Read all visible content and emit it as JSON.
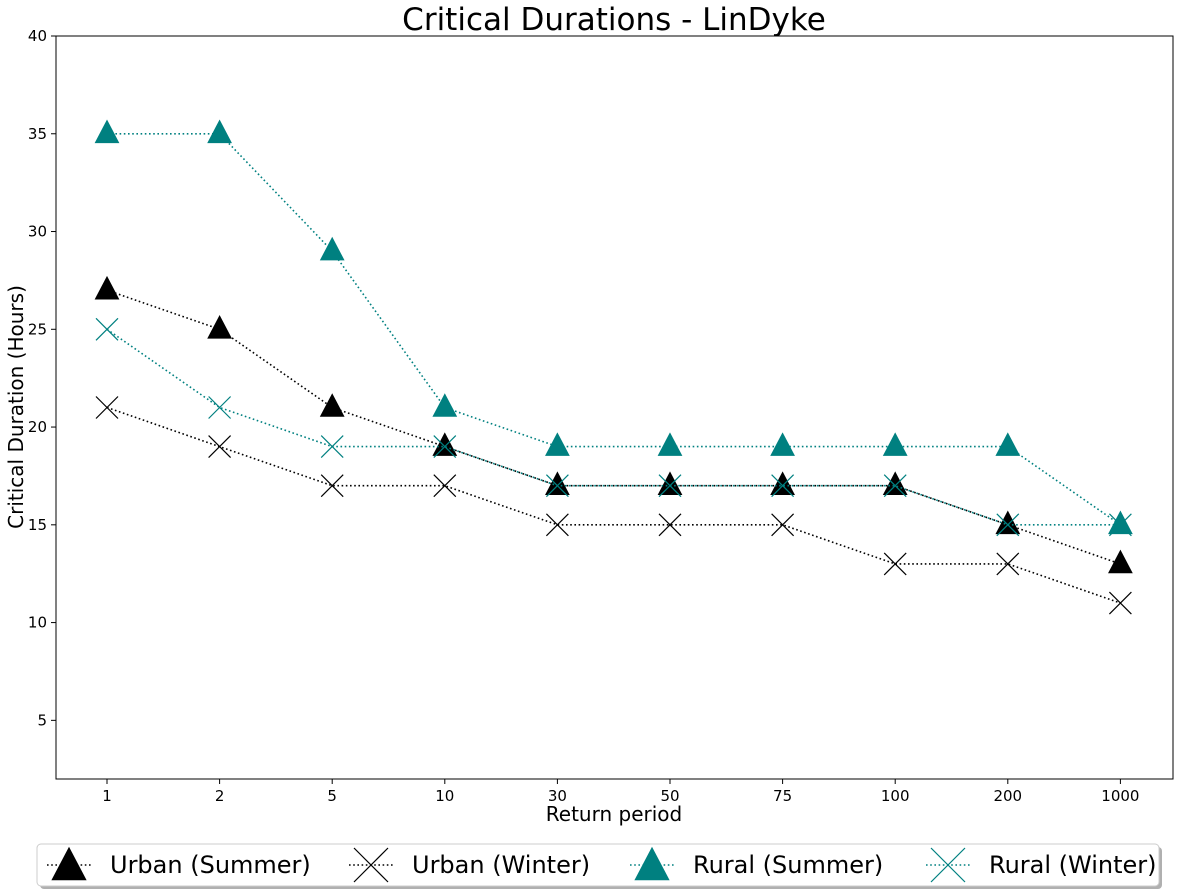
{
  "chart_data": {
    "type": "line",
    "title": "Critical Durations - LinDyke",
    "xlabel": "Return period",
    "ylabel": "Critical Duration (Hours)",
    "categories": [
      "1",
      "2",
      "5",
      "10",
      "30",
      "50",
      "75",
      "100",
      "200",
      "1000"
    ],
    "ylim": [
      2,
      40
    ],
    "yticks": [
      5,
      10,
      15,
      20,
      25,
      30,
      35,
      40
    ],
    "grid": false,
    "legend_position": "bottom",
    "series": [
      {
        "name": "Urban (Summer)",
        "marker": "triangle",
        "color": "#000000",
        "line_style": "dotted",
        "values": [
          27,
          25,
          21,
          19,
          17,
          17,
          17,
          17,
          15,
          13
        ]
      },
      {
        "name": "Urban (Winter)",
        "marker": "x",
        "color": "#000000",
        "line_style": "dotted",
        "values": [
          21,
          19,
          17,
          17,
          15,
          15,
          15,
          13,
          13,
          11
        ]
      },
      {
        "name": "Rural (Summer)",
        "marker": "triangle",
        "color": "#008080",
        "line_style": "dotted",
        "values": [
          35,
          35,
          29,
          21,
          19,
          19,
          19,
          19,
          19,
          15
        ]
      },
      {
        "name": "Rural (Winter)",
        "marker": "x",
        "color": "#008080",
        "line_style": "dotted",
        "values": [
          25,
          21,
          19,
          19,
          17,
          17,
          17,
          17,
          15,
          15
        ]
      }
    ]
  }
}
